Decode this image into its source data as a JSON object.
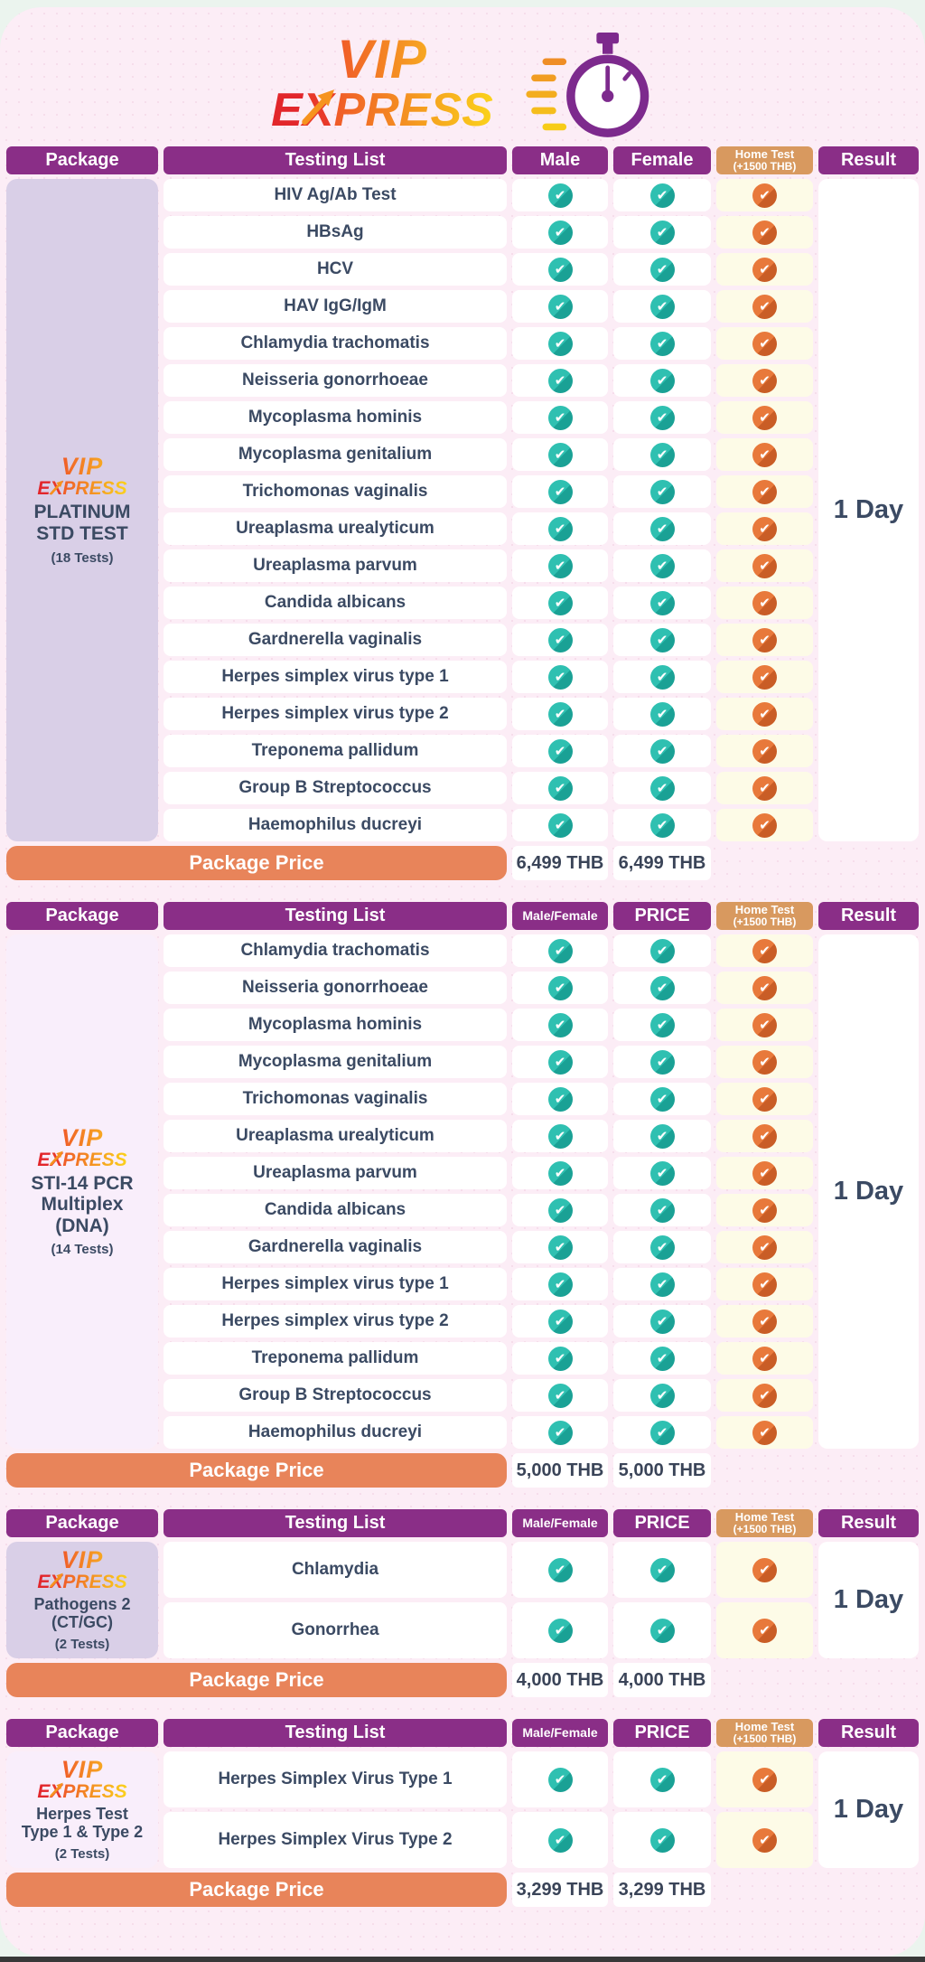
{
  "logo": {
    "vip": "VIP",
    "express": "EXPRESS"
  },
  "colors": {
    "header_purple": "#8a2e87",
    "home_test_tan": "#d8995f",
    "teal_check": "#2fc0b1",
    "orange_check": "#e8793b",
    "price_bar_orange": "#e8845a",
    "flyer_pink": "#fcedf6",
    "package_lavender": "#d9cfe7",
    "package_light": "#f9eefb",
    "home_cell_cream": "#fdfbe7",
    "text_navy": "#3b4a63",
    "stopwatch_purple": "#7d2a8d"
  },
  "tables": [
    {
      "headers": {
        "package": "Package",
        "testing_list": "Testing List",
        "col3": "Male",
        "col4": "Female",
        "home_test": "Home Test",
        "home_test_sub": "(+1500 THB)",
        "result": "Result"
      },
      "package": {
        "logo_vip": "VIP",
        "logo_express": "EXPRESS",
        "name_lines": [
          "PLATINUM",
          "STD TEST"
        ],
        "count": "(18 Tests)"
      },
      "tests": [
        "HIV Ag/Ab Test",
        "HBsAg",
        "HCV",
        "HAV IgG/IgM",
        "Chlamydia trachomatis",
        "Neisseria gonorrhoeae",
        "Mycoplasma hominis",
        "Mycoplasma genitalium",
        "Trichomonas vaginalis",
        "Ureaplasma urealyticum",
        "Ureaplasma parvum",
        "Candida albicans",
        "Gardnerella vaginalis",
        "Herpes simplex virus type 1",
        "Herpes simplex virus type 2",
        "Treponema pallidum",
        "Group B Streptococcus",
        "Haemophilus ducreyi"
      ],
      "result": "1 Day",
      "price": {
        "label": "Package Price",
        "col3": "6,499 THB",
        "col4": "6,499 THB"
      }
    },
    {
      "headers": {
        "package": "Package",
        "testing_list": "Testing List",
        "col3": "Male/Female",
        "col4": "PRICE",
        "home_test": "Home Test",
        "home_test_sub": "(+1500 THB)",
        "result": "Result"
      },
      "package": {
        "logo_vip": "VIP",
        "logo_express": "EXPRESS",
        "name_lines": [
          "STI-14 PCR",
          "Multiplex",
          "(DNA)"
        ],
        "count": "(14 Tests)"
      },
      "tests": [
        "Chlamydia trachomatis",
        "Neisseria gonorrhoeae",
        "Mycoplasma hominis",
        "Mycoplasma genitalium",
        "Trichomonas vaginalis",
        "Ureaplasma urealyticum",
        "Ureaplasma parvum",
        "Candida albicans",
        "Gardnerella vaginalis",
        "Herpes simplex virus type 1",
        "Herpes simplex virus type 2",
        "Treponema pallidum",
        "Group B Streptococcus",
        "Haemophilus ducreyi"
      ],
      "result": "1 Day",
      "price": {
        "label": "Package Price",
        "col3": "5,000 THB",
        "col4": "5,000 THB"
      }
    },
    {
      "headers": {
        "package": "Package",
        "testing_list": "Testing List",
        "col3": "Male/Female",
        "col4": "PRICE",
        "home_test": "Home Test",
        "home_test_sub": "(+1500 THB)",
        "result": "Result"
      },
      "package": {
        "logo_vip": "VIP",
        "logo_express": "EXPRESS",
        "name_lines": [
          "Pathogens 2",
          "(CT/GC)"
        ],
        "count": "(2 Tests)"
      },
      "tests": [
        "Chlamydia",
        "Gonorrhea"
      ],
      "result": "1 Day",
      "price": {
        "label": "Package Price",
        "col3": "4,000 THB",
        "col4": "4,000 THB"
      }
    },
    {
      "headers": {
        "package": "Package",
        "testing_list": "Testing List",
        "col3": "Male/Female",
        "col4": "PRICE",
        "home_test": "Home Test",
        "home_test_sub": "(+1500 THB)",
        "result": "Result"
      },
      "package": {
        "logo_vip": "VIP",
        "logo_express": "EXPRESS",
        "name_lines": [
          "Herpes Test",
          "Type 1 & Type 2"
        ],
        "count": "(2 Tests)"
      },
      "tests": [
        "Herpes Simplex Virus Type 1",
        "Herpes Simplex Virus Type 2"
      ],
      "result": "1 Day",
      "price": {
        "label": "Package Price",
        "col3": "3,299 THB",
        "col4": "3,299 THB"
      }
    }
  ]
}
